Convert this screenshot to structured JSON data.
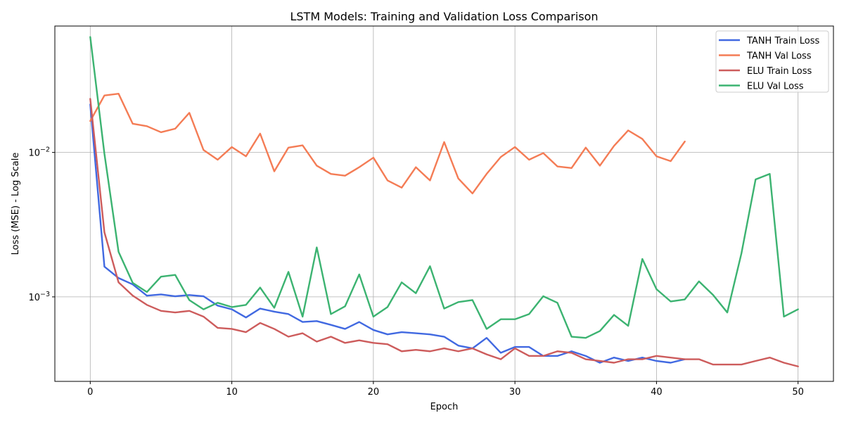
{
  "chart_data": {
    "type": "line",
    "title": "LSTM Models: Training and Validation Loss Comparison",
    "xlabel": "Epoch",
    "ylabel": "Loss (MSE) - Log Scale",
    "yscale": "log",
    "xlim": [
      -2.5,
      52.5
    ],
    "ylim": [
      0.00026,
      0.075
    ],
    "x_ticks": [
      0,
      10,
      20,
      30,
      40,
      50
    ],
    "y_ticks": [
      {
        "value": 0.001,
        "label": "10",
        "exp": "−3"
      },
      {
        "value": 0.01,
        "label": "10",
        "exp": "−2"
      }
    ],
    "grid": true,
    "legend_position": "top-right",
    "series": [
      {
        "name": "TANH Train Loss",
        "color": "#4169e1",
        "x": [
          0,
          1,
          2,
          3,
          4,
          5,
          6,
          7,
          8,
          9,
          10,
          11,
          12,
          13,
          14,
          15,
          16,
          17,
          18,
          19,
          20,
          21,
          22,
          23,
          24,
          25,
          26,
          27,
          28,
          29,
          30,
          31,
          32,
          33,
          34,
          35,
          36,
          37,
          38,
          39,
          40,
          41,
          42
        ],
        "values": [
          0.0215,
          0.00162,
          0.00135,
          0.00122,
          0.00102,
          0.00104,
          0.00101,
          0.00103,
          0.00101,
          0.00087,
          0.00082,
          0.00072,
          0.00083,
          0.00079,
          0.00076,
          0.00067,
          0.00068,
          0.00064,
          0.0006,
          0.00067,
          0.00059,
          0.00055,
          0.00057,
          0.00056,
          0.00055,
          0.00053,
          0.00046,
          0.00044,
          0.00052,
          0.00041,
          0.00045,
          0.00045,
          0.00039,
          0.00039,
          0.00042,
          0.00039,
          0.00035,
          0.00038,
          0.00036,
          0.00038,
          0.00036,
          0.00035,
          0.00037
        ]
      },
      {
        "name": "TANH Val Loss",
        "color": "#f47c55",
        "x": [
          0,
          1,
          2,
          3,
          4,
          5,
          6,
          7,
          8,
          9,
          10,
          11,
          12,
          13,
          14,
          15,
          16,
          17,
          18,
          19,
          20,
          21,
          22,
          23,
          24,
          25,
          26,
          27,
          28,
          29,
          30,
          31,
          32,
          33,
          34,
          35,
          36,
          37,
          38,
          39,
          40,
          41,
          42
        ],
        "values": [
          0.0165,
          0.0248,
          0.0255,
          0.0158,
          0.0152,
          0.0138,
          0.0146,
          0.0188,
          0.0104,
          0.0089,
          0.0109,
          0.0094,
          0.0135,
          0.0074,
          0.0108,
          0.0112,
          0.0081,
          0.0071,
          0.0069,
          0.0079,
          0.0092,
          0.0064,
          0.0057,
          0.0079,
          0.0064,
          0.0118,
          0.0066,
          0.0052,
          0.0071,
          0.0093,
          0.0109,
          0.0089,
          0.0099,
          0.008,
          0.0078,
          0.0108,
          0.0081,
          0.0111,
          0.0142,
          0.0124,
          0.0094,
          0.0087,
          0.0119
        ]
      },
      {
        "name": "ELU Train Loss",
        "color": "#cd5c5c",
        "x": [
          0,
          1,
          2,
          3,
          4,
          5,
          6,
          7,
          8,
          9,
          10,
          11,
          12,
          13,
          14,
          15,
          16,
          17,
          18,
          19,
          20,
          21,
          22,
          23,
          24,
          25,
          26,
          27,
          28,
          29,
          30,
          31,
          32,
          33,
          34,
          35,
          36,
          37,
          38,
          39,
          40,
          41,
          42,
          43,
          44,
          45,
          46,
          47,
          48,
          49,
          50
        ],
        "values": [
          0.0235,
          0.0028,
          0.00126,
          0.00102,
          0.00088,
          0.0008,
          0.00078,
          0.0008,
          0.00073,
          0.00061,
          0.0006,
          0.00057,
          0.00066,
          0.0006,
          0.00053,
          0.00056,
          0.00049,
          0.00053,
          0.00048,
          0.0005,
          0.00048,
          0.00047,
          0.00042,
          0.00043,
          0.00042,
          0.00044,
          0.00042,
          0.00044,
          0.0004,
          0.00037,
          0.00044,
          0.00039,
          0.00039,
          0.00042,
          0.00041,
          0.00037,
          0.00036,
          0.00035,
          0.00037,
          0.00037,
          0.00039,
          0.00038,
          0.00037,
          0.00037,
          0.00034,
          0.00034,
          0.00034,
          0.00036,
          0.00038,
          0.00035,
          0.00033
        ]
      },
      {
        "name": "ELU Val Loss",
        "color": "#3cb371",
        "x": [
          0,
          1,
          2,
          3,
          4,
          5,
          6,
          7,
          8,
          9,
          10,
          11,
          12,
          13,
          14,
          15,
          16,
          17,
          18,
          19,
          20,
          21,
          22,
          23,
          24,
          25,
          26,
          27,
          28,
          29,
          30,
          31,
          32,
          33,
          34,
          35,
          36,
          37,
          38,
          39,
          40,
          41,
          42,
          43,
          44,
          45,
          46,
          47,
          48,
          49,
          50
        ],
        "values": [
          0.063,
          0.0098,
          0.00205,
          0.00125,
          0.00108,
          0.00138,
          0.00142,
          0.00095,
          0.00082,
          0.00091,
          0.00085,
          0.00088,
          0.00116,
          0.00084,
          0.00149,
          0.00073,
          0.0022,
          0.00076,
          0.00086,
          0.00143,
          0.00073,
          0.00085,
          0.00126,
          0.00106,
          0.00163,
          0.00083,
          0.00092,
          0.00095,
          0.0006,
          0.0007,
          0.0007,
          0.00076,
          0.00101,
          0.00091,
          0.00053,
          0.00052,
          0.00058,
          0.00075,
          0.00063,
          0.00183,
          0.00113,
          0.00093,
          0.00096,
          0.00128,
          0.00103,
          0.00078,
          0.002,
          0.0065,
          0.0071,
          0.00073,
          0.00082
        ]
      }
    ]
  }
}
